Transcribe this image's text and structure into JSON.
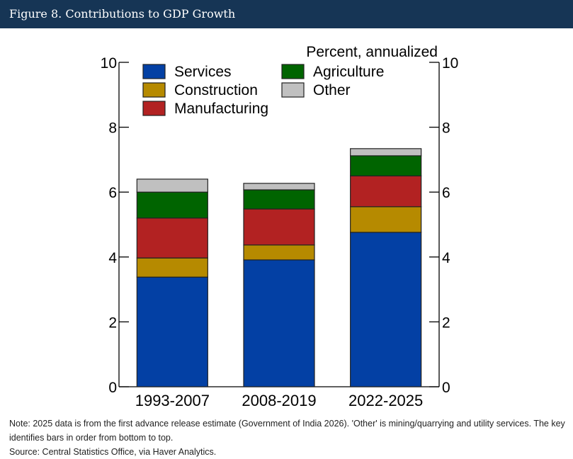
{
  "header": {
    "title": "Figure 8. Contributions to GDP Growth"
  },
  "chart_data": {
    "type": "bar",
    "stacked": true,
    "title": "Figure 8. Contributions to GDP Growth",
    "unit_label": "Percent, annualized",
    "xlabel": "",
    "ylabel": "",
    "ylim": [
      0,
      10
    ],
    "yticks": [
      0,
      2,
      4,
      6,
      8,
      10
    ],
    "grid": false,
    "legend_placement": "top-left",
    "categories": [
      "1993-2007",
      "2008-2019",
      "2022-2025"
    ],
    "series": [
      {
        "name": "Services",
        "color": "#0340a4",
        "values": [
          3.38,
          3.91,
          4.76
        ]
      },
      {
        "name": "Construction",
        "color": "#b68a00",
        "values": [
          0.59,
          0.46,
          0.79
        ]
      },
      {
        "name": "Manufacturing",
        "color": "#b22222",
        "values": [
          1.23,
          1.11,
          0.95
        ]
      },
      {
        "name": "Agriculture",
        "color": "#006400",
        "values": [
          0.8,
          0.59,
          0.62
        ]
      },
      {
        "name": "Other",
        "color": "#c0c0c0",
        "values": [
          0.4,
          0.2,
          0.22
        ]
      }
    ]
  },
  "notes": {
    "note": "Note: 2025 data is from the first advance release estimate (Government of India 2026). 'Other' is mining/quarrying and utility services. The key identifies bars in order from bottom to top.",
    "source": "Source: Central Statistics Office, via Haver Analytics."
  }
}
